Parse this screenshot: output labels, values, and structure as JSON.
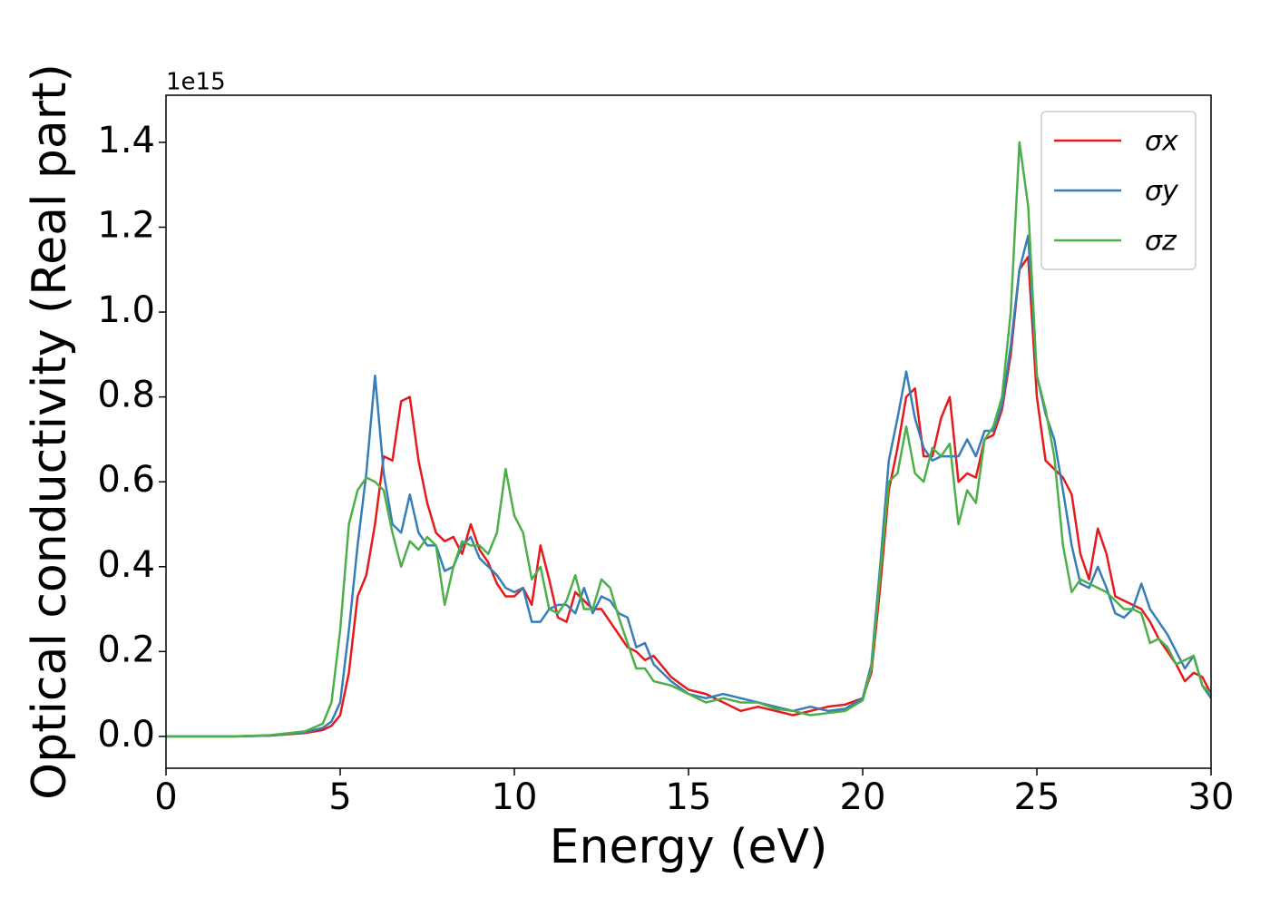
{
  "chart_data": {
    "type": "line",
    "xlabel": "Energy (eV)",
    "ylabel": "Optical conductivity (Real part)",
    "y_offset_label": "1e15",
    "xlim": [
      0,
      30
    ],
    "ylim": [
      -0.075,
      1.511
    ],
    "xticks": [
      0,
      5,
      10,
      15,
      20,
      25,
      30
    ],
    "yticks": [
      {
        "value": 0,
        "label": "0.0"
      },
      0.2,
      0.4,
      0.6,
      0.8,
      {
        "value": 1,
        "label": "1.0"
      },
      1.2,
      1.4
    ],
    "legend": "upper right",
    "x": [
      0,
      1,
      2,
      3,
      4,
      4.5,
      4.75,
      5,
      5.25,
      5.5,
      5.75,
      6,
      6.25,
      6.5,
      6.75,
      7,
      7.25,
      7.5,
      7.75,
      8,
      8.25,
      8.5,
      8.75,
      9,
      9.25,
      9.5,
      9.75,
      10,
      10.25,
      10.5,
      10.75,
      11,
      11.25,
      11.5,
      11.75,
      12,
      12.25,
      12.5,
      12.75,
      13,
      13.25,
      13.5,
      13.75,
      14,
      14.5,
      15,
      15.5,
      16,
      16.5,
      17,
      17.5,
      18,
      18.5,
      19,
      19.5,
      20,
      20.25,
      20.5,
      20.75,
      21,
      21.25,
      21.5,
      21.75,
      22,
      22.25,
      22.5,
      22.75,
      23,
      23.25,
      23.5,
      23.75,
      24,
      24.25,
      24.5,
      24.75,
      25,
      25.25,
      25.5,
      25.75,
      26,
      26.25,
      26.5,
      26.75,
      27,
      27.25,
      27.5,
      27.75,
      28,
      28.25,
      28.5,
      28.75,
      29,
      29.25,
      29.5,
      29.75,
      30
    ],
    "series": [
      {
        "name": "σx",
        "color": "#e41a1c",
        "values": [
          0,
          0,
          0,
          0.002,
          0.008,
          0.015,
          0.025,
          0.05,
          0.15,
          0.33,
          0.38,
          0.5,
          0.66,
          0.65,
          0.79,
          0.8,
          0.65,
          0.55,
          0.48,
          0.46,
          0.47,
          0.43,
          0.5,
          0.44,
          0.41,
          0.36,
          0.33,
          0.33,
          0.35,
          0.31,
          0.45,
          0.37,
          0.28,
          0.27,
          0.34,
          0.32,
          0.3,
          0.3,
          0.27,
          0.24,
          0.21,
          0.2,
          0.18,
          0.19,
          0.14,
          0.11,
          0.1,
          0.08,
          0.06,
          0.07,
          0.06,
          0.05,
          0.06,
          0.07,
          0.075,
          0.09,
          0.15,
          0.35,
          0.58,
          0.68,
          0.8,
          0.82,
          0.66,
          0.66,
          0.75,
          0.8,
          0.6,
          0.62,
          0.61,
          0.7,
          0.71,
          0.77,
          0.9,
          1.1,
          1.13,
          0.8,
          0.65,
          0.63,
          0.61,
          0.57,
          0.43,
          0.37,
          0.49,
          0.43,
          0.33,
          0.32,
          0.31,
          0.3,
          0.27,
          0.23,
          0.2,
          0.17,
          0.13,
          0.15,
          0.14,
          0.1
        ]
      },
      {
        "name": "σy",
        "color": "#377eb8",
        "values": [
          0,
          0,
          0,
          0.002,
          0.01,
          0.02,
          0.035,
          0.08,
          0.25,
          0.45,
          0.62,
          0.85,
          0.62,
          0.5,
          0.48,
          0.57,
          0.48,
          0.45,
          0.45,
          0.39,
          0.4,
          0.45,
          0.47,
          0.42,
          0.4,
          0.38,
          0.35,
          0.34,
          0.35,
          0.27,
          0.27,
          0.3,
          0.31,
          0.31,
          0.29,
          0.35,
          0.29,
          0.33,
          0.32,
          0.29,
          0.28,
          0.21,
          0.22,
          0.17,
          0.13,
          0.1,
          0.09,
          0.1,
          0.09,
          0.08,
          0.07,
          0.06,
          0.07,
          0.06,
          0.065,
          0.09,
          0.17,
          0.4,
          0.65,
          0.75,
          0.86,
          0.75,
          0.68,
          0.65,
          0.66,
          0.66,
          0.66,
          0.7,
          0.66,
          0.72,
          0.72,
          0.78,
          0.92,
          1.1,
          1.18,
          0.85,
          0.76,
          0.7,
          0.58,
          0.45,
          0.36,
          0.35,
          0.4,
          0.35,
          0.29,
          0.28,
          0.3,
          0.36,
          0.3,
          0.27,
          0.24,
          0.2,
          0.16,
          0.19,
          0.12,
          0.09
        ]
      },
      {
        "name": "σz",
        "color": "#4daf4a",
        "values": [
          0,
          0,
          0,
          0.003,
          0.012,
          0.03,
          0.08,
          0.25,
          0.5,
          0.58,
          0.61,
          0.6,
          0.58,
          0.48,
          0.4,
          0.46,
          0.44,
          0.47,
          0.45,
          0.31,
          0.4,
          0.46,
          0.45,
          0.45,
          0.43,
          0.48,
          0.63,
          0.52,
          0.48,
          0.37,
          0.4,
          0.3,
          0.29,
          0.32,
          0.38,
          0.3,
          0.3,
          0.37,
          0.35,
          0.28,
          0.22,
          0.16,
          0.16,
          0.13,
          0.12,
          0.1,
          0.08,
          0.09,
          0.08,
          0.08,
          0.065,
          0.06,
          0.05,
          0.055,
          0.06,
          0.085,
          0.16,
          0.38,
          0.6,
          0.62,
          0.73,
          0.62,
          0.6,
          0.68,
          0.66,
          0.69,
          0.5,
          0.58,
          0.55,
          0.7,
          0.73,
          0.8,
          1.0,
          1.4,
          1.25,
          0.85,
          0.77,
          0.66,
          0.45,
          0.34,
          0.37,
          0.36,
          0.35,
          0.34,
          0.32,
          0.3,
          0.3,
          0.29,
          0.22,
          0.23,
          0.21,
          0.17,
          0.18,
          0.19,
          0.12,
          0.1
        ]
      }
    ]
  }
}
